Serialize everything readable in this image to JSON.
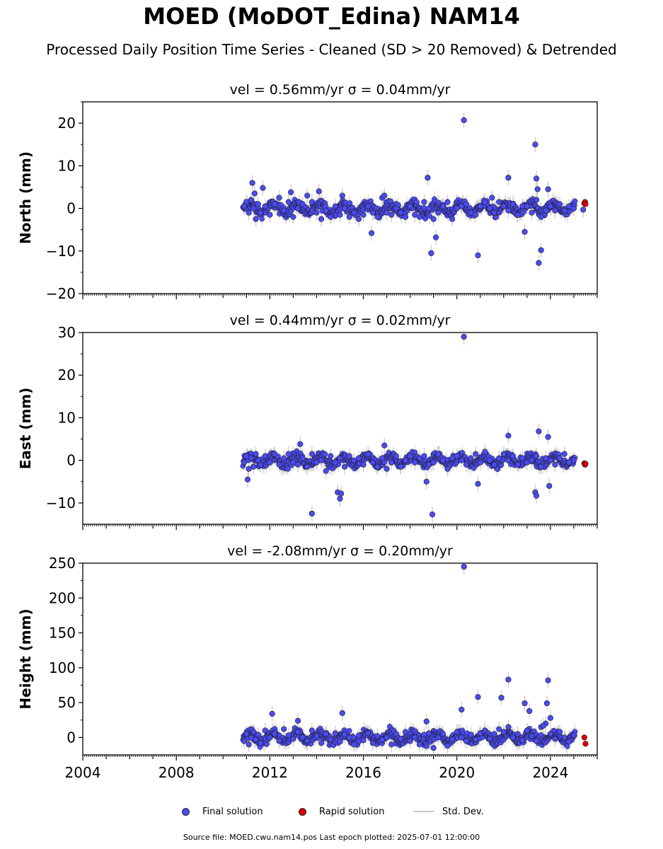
{
  "title": "MOED (MoDOT_Edina) NAM14",
  "subtitle": "Processed Daily Position Time Series - Cleaned (SD > 20 Removed) & Detrended",
  "legend": {
    "final": "Final solution",
    "rapid": "Rapid solution",
    "std": "Std. Dev."
  },
  "footer": "Source file: MOED.cwu.nam14.pos  Last epoch plotted: 2025-07-01 12:00:00",
  "colors": {
    "final": "#4b4bf2",
    "rapid": "#e00000",
    "std_dev": "#c8c8c8",
    "marker_edge": "#1a1a1a"
  },
  "chart_data": [
    {
      "type": "scatter",
      "title": "vel = 0.56mm/yr   σ = 0.04mm/yr",
      "ylabel": "North (mm)",
      "xlim": [
        2004,
        2026
      ],
      "ylim": [
        -20,
        25
      ],
      "yticks": [
        20,
        10,
        0,
        -10,
        -20
      ],
      "ytick_labels": [
        "20",
        "10",
        "0",
        "−10",
        "−20"
      ],
      "xticks": [
        2004,
        2008,
        2012,
        2016,
        2020,
        2024
      ],
      "xtick_labels": [],
      "grid": false,
      "series": [
        {
          "role": "final",
          "x": [
            2010.9,
            2011.0,
            2011.1,
            2011.2,
            2011.3,
            2011.4,
            2011.5,
            2011.6,
            2011.8,
            2012.0,
            2012.2,
            2012.4,
            2012.6,
            2012.8,
            2013.0,
            2013.2,
            2013.4,
            2013.6,
            2013.8,
            2014.0,
            2014.2,
            2014.4,
            2014.6,
            2014.8,
            2015.0,
            2015.2,
            2015.4,
            2015.6,
            2015.8,
            2016.0,
            2016.2,
            2016.4,
            2016.6,
            2016.8,
            2017.0,
            2017.2,
            2017.4,
            2017.6,
            2017.8,
            2018.0,
            2018.2,
            2018.4,
            2018.6,
            2018.8,
            2019.0,
            2019.2,
            2019.4,
            2019.6,
            2019.8,
            2020.0,
            2020.2,
            2020.4,
            2020.6,
            2020.8,
            2021.0,
            2021.2,
            2021.4,
            2021.6,
            2021.8,
            2022.0,
            2022.2,
            2022.4,
            2022.6,
            2022.8,
            2023.0,
            2023.2,
            2023.4,
            2023.6,
            2023.8,
            2024.0,
            2024.2,
            2024.4,
            2024.6,
            2024.8,
            2025.0,
            2011.25,
            2011.35,
            2011.7,
            2012.9,
            2014.1,
            2015.1,
            2016.35,
            2016.9,
            2018.75,
            2018.9,
            2019.1,
            2020.3,
            2020.9,
            2021.5,
            2022.2,
            2022.9,
            2023.35,
            2023.4,
            2023.45,
            2023.5,
            2023.6,
            2023.9,
            2025.4
          ],
          "y": [
            0.5,
            1.5,
            -1.0,
            2.0,
            0.0,
            -2.5,
            1.0,
            -1.0,
            0.5,
            -1.5,
            1.0,
            2.5,
            -0.5,
            1.5,
            -2.0,
            0.0,
            1.0,
            3.0,
            1.5,
            -1.0,
            -2.5,
            -0.5,
            -2.0,
            0.5,
            -1.5,
            0.0,
            -2.0,
            -1.0,
            -2.5,
            -1.5,
            0.5,
            -1.0,
            -2.0,
            2.5,
            -1.0,
            -1.5,
            0.0,
            -1.0,
            -2.0,
            0.5,
            -1.5,
            -2.0,
            1.5,
            0.0,
            -2.5,
            -1.0,
            0.5,
            1.5,
            -2.5,
            0.0,
            0.5,
            1.0,
            -1.0,
            -1.5,
            0.5,
            1.5,
            0.0,
            -1.0,
            1.5,
            0.5,
            -0.5,
            1.0,
            -1.5,
            0.5,
            0.5,
            -1.0,
            2.0,
            -2.0,
            -0.5,
            0.5,
            -0.5,
            1.0,
            -0.5,
            0.5,
            0.0,
            6.0,
            3.5,
            4.8,
            3.8,
            4.0,
            3.0,
            -5.8,
            3.0,
            7.2,
            -10.5,
            -6.8,
            20.7,
            -11.0,
            2.5,
            7.2,
            -5.5,
            15.0,
            7.0,
            4.5,
            -12.8,
            -9.8,
            4.5,
            -0.3
          ]
        },
        {
          "role": "rapid",
          "x": [
            2025.45,
            2025.48,
            2025.5
          ],
          "y": [
            1.2,
            1.5,
            1.0
          ]
        }
      ]
    },
    {
      "type": "scatter",
      "title": "vel = 0.44mm/yr   σ = 0.02mm/yr",
      "ylabel": "East (mm)",
      "xlim": [
        2004,
        2026
      ],
      "ylim": [
        -15,
        30
      ],
      "yticks": [
        30,
        20,
        10,
        0,
        -10
      ],
      "ytick_labels": [
        "30",
        "20",
        "10",
        "0",
        "−10"
      ],
      "xticks": [
        2004,
        2008,
        2012,
        2016,
        2020,
        2024
      ],
      "xtick_labels": [],
      "grid": false,
      "series": [
        {
          "role": "final",
          "x": [
            2010.9,
            2011.0,
            2011.1,
            2011.2,
            2011.3,
            2011.4,
            2011.5,
            2011.6,
            2011.8,
            2012.0,
            2012.2,
            2012.4,
            2012.6,
            2012.8,
            2013.0,
            2013.2,
            2013.4,
            2013.6,
            2013.8,
            2014.0,
            2014.2,
            2014.4,
            2014.6,
            2014.8,
            2015.0,
            2015.2,
            2015.4,
            2015.6,
            2015.8,
            2016.0,
            2016.2,
            2016.4,
            2016.6,
            2016.8,
            2017.0,
            2017.2,
            2017.4,
            2017.6,
            2017.8,
            2018.0,
            2018.2,
            2018.4,
            2018.6,
            2018.8,
            2019.0,
            2019.2,
            2019.4,
            2019.6,
            2019.8,
            2020.0,
            2020.2,
            2020.4,
            2020.6,
            2020.8,
            2021.0,
            2021.2,
            2021.4,
            2021.6,
            2021.8,
            2022.0,
            2022.2,
            2022.4,
            2022.6,
            2022.8,
            2023.0,
            2023.2,
            2023.4,
            2023.6,
            2023.8,
            2024.0,
            2024.2,
            2024.4,
            2024.6,
            2024.8,
            2025.0,
            2011.05,
            2013.3,
            2013.8,
            2014.9,
            2015.0,
            2015.05,
            2016.9,
            2018.7,
            2018.95,
            2020.3,
            2020.9,
            2022.2,
            2023.35,
            2023.4,
            2023.5,
            2023.9,
            2023.95
          ],
          "y": [
            -0.5,
            1.0,
            -2.0,
            0.5,
            -1.5,
            1.5,
            0.0,
            -1.0,
            1.0,
            -0.5,
            1.5,
            -1.0,
            0.5,
            1.5,
            -0.5,
            -1.0,
            0.5,
            -1.5,
            1.5,
            -0.5,
            0.0,
            -2.5,
            1.0,
            -0.5,
            0.5,
            -1.5,
            1.0,
            0.0,
            0.5,
            -1.0,
            1.5,
            -0.5,
            -1.5,
            0.5,
            -2.0,
            -0.5,
            1.0,
            -1.5,
            0.0,
            1.0,
            -0.5,
            0.5,
            1.0,
            -1.0,
            -0.5,
            1.5,
            0.0,
            -2.0,
            0.5,
            1.0,
            0.0,
            -1.0,
            0.5,
            1.5,
            -0.5,
            2.0,
            0.0,
            -1.0,
            0.5,
            1.5,
            0.0,
            1.0,
            -1.0,
            0.5,
            -0.5,
            0.0,
            1.0,
            -1.5,
            0.5,
            0.0,
            -1.0,
            0.5,
            1.5,
            -0.5,
            0.0,
            -4.5,
            3.8,
            -12.5,
            -7.5,
            -9.0,
            -7.8,
            3.5,
            -5.0,
            -12.7,
            29.0,
            -5.5,
            5.8,
            -7.5,
            -8.3,
            6.8,
            5.5,
            -6.0
          ]
        },
        {
          "role": "rapid",
          "x": [
            2025.45,
            2025.48,
            2025.5
          ],
          "y": [
            -0.7,
            -1.0,
            -0.8
          ]
        }
      ]
    },
    {
      "type": "scatter",
      "title": "vel = -2.08mm/yr   σ = 0.20mm/yr",
      "ylabel": "Height (mm)",
      "xlim": [
        2004,
        2026
      ],
      "ylim": [
        -25,
        250
      ],
      "yticks": [
        250,
        200,
        150,
        100,
        50,
        0
      ],
      "ytick_labels": [
        "250",
        "200",
        "150",
        "100",
        "50",
        "0"
      ],
      "xticks": [
        2004,
        2008,
        2012,
        2016,
        2020,
        2024
      ],
      "xtick_labels": [
        "2004",
        "2008",
        "2012",
        "2016",
        "2020",
        "2024"
      ],
      "grid": false,
      "series": [
        {
          "role": "final",
          "x": [
            2010.9,
            2011.0,
            2011.1,
            2011.2,
            2011.3,
            2011.4,
            2011.5,
            2011.6,
            2011.8,
            2012.0,
            2012.2,
            2012.4,
            2012.6,
            2012.8,
            2013.0,
            2013.2,
            2013.4,
            2013.6,
            2013.8,
            2014.0,
            2014.2,
            2014.4,
            2014.6,
            2014.8,
            2015.0,
            2015.2,
            2015.4,
            2015.6,
            2015.8,
            2016.0,
            2016.2,
            2016.4,
            2016.6,
            2016.8,
            2017.0,
            2017.2,
            2017.4,
            2017.6,
            2017.8,
            2018.0,
            2018.2,
            2018.4,
            2018.6,
            2018.8,
            2019.0,
            2019.2,
            2019.4,
            2019.6,
            2019.8,
            2020.0,
            2020.2,
            2020.4,
            2020.6,
            2020.8,
            2021.0,
            2021.2,
            2021.4,
            2021.6,
            2021.8,
            2022.0,
            2022.2,
            2022.4,
            2022.6,
            2022.8,
            2023.0,
            2023.2,
            2023.4,
            2023.6,
            2023.8,
            2024.0,
            2024.2,
            2024.4,
            2024.6,
            2024.8,
            2025.0,
            2012.1,
            2013.2,
            2015.1,
            2018.7,
            2020.2,
            2020.3,
            2020.9,
            2021.9,
            2022.2,
            2022.9,
            2023.1,
            2023.7,
            2023.85,
            2023.9,
            2024.0
          ],
          "y": [
            -5,
            5,
            -10,
            0,
            8,
            -3,
            4,
            -8,
            10,
            0,
            5,
            -5,
            12,
            3,
            -2,
            8,
            0,
            -5,
            10,
            2,
            -8,
            5,
            -3,
            6,
            -6,
            4,
            0,
            -10,
            3,
            -4,
            6,
            -8,
            2,
            -3,
            0,
            -10,
            5,
            -2,
            8,
            -5,
            0,
            -10,
            4,
            6,
            -15,
            0,
            5,
            -12,
            -3,
            8,
            0,
            -5,
            4,
            -3,
            6,
            10,
            -2,
            5,
            12,
            8,
            15,
            0,
            5,
            -4,
            10,
            2,
            -5,
            15,
            20,
            5,
            -2,
            8,
            0,
            -6,
            3,
            34,
            24,
            35,
            23,
            40,
            245,
            58,
            57,
            83,
            49,
            38,
            17,
            49,
            82,
            28
          ]
        },
        {
          "role": "rapid",
          "x": [
            2025.45,
            2025.5
          ],
          "y": [
            0,
            -9
          ]
        }
      ]
    }
  ]
}
